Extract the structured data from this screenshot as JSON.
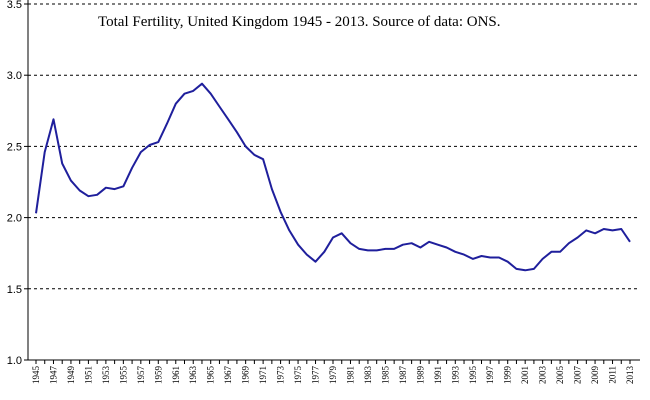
{
  "chart_data": {
    "type": "line",
    "title": "Total Fertility, United Kingdom 1945 - 2013. Source of data: ONS.",
    "xlabel": "",
    "ylabel": "",
    "ylim": [
      1.0,
      3.5
    ],
    "yticks": [
      "1.0",
      "1.5",
      "2.0",
      "2.5",
      "3.0",
      "3.5"
    ],
    "grid": "horizontal dashed",
    "line_color": "#1f1f9c",
    "x_tick_labels": [
      "1945",
      "1947",
      "1949",
      "1951",
      "1953",
      "1955",
      "1957",
      "1959",
      "1961",
      "1963",
      "1965",
      "1967",
      "1969",
      "1971",
      "1973",
      "1975",
      "1977",
      "1979",
      "1981",
      "1983",
      "1985",
      "1987",
      "1989",
      "1991",
      "1993",
      "1995",
      "1997",
      "1999",
      "2001",
      "2003",
      "2005",
      "2007",
      "2009",
      "2011",
      "2013"
    ],
    "series": [
      {
        "x": [
          1945,
          1946,
          1947,
          1948,
          1949,
          1950,
          1951,
          1952,
          1953,
          1954,
          1955,
          1956,
          1957,
          1958,
          1959,
          1960,
          1961,
          1962,
          1963,
          1964,
          1965,
          1966,
          1967,
          1968,
          1969,
          1970,
          1971,
          1972,
          1973,
          1974,
          1975,
          1976,
          1977,
          1978,
          1979,
          1980,
          1981,
          1982,
          1983,
          1984,
          1985,
          1986,
          1987,
          1988,
          1989,
          1990,
          1991,
          1992,
          1993,
          1994,
          1995,
          1996,
          1997,
          1998,
          1999,
          2000,
          2001,
          2002,
          2003,
          2004,
          2005,
          2006,
          2007,
          2008,
          2009,
          2010,
          2011,
          2012,
          2013
        ],
        "values": [
          2.03,
          2.46,
          2.69,
          2.38,
          2.26,
          2.19,
          2.15,
          2.16,
          2.21,
          2.2,
          2.22,
          2.35,
          2.46,
          2.51,
          2.53,
          2.66,
          2.8,
          2.87,
          2.89,
          2.94,
          2.87,
          2.78,
          2.69,
          2.6,
          2.5,
          2.44,
          2.41,
          2.2,
          2.04,
          1.91,
          1.81,
          1.74,
          1.69,
          1.76,
          1.86,
          1.89,
          1.82,
          1.78,
          1.77,
          1.77,
          1.78,
          1.78,
          1.81,
          1.82,
          1.79,
          1.83,
          1.81,
          1.79,
          1.76,
          1.74,
          1.71,
          1.73,
          1.72,
          1.72,
          1.69,
          1.64,
          1.63,
          1.64,
          1.71,
          1.76,
          1.76,
          1.82,
          1.86,
          1.91,
          1.89,
          1.92,
          1.91,
          1.92,
          1.83
        ]
      }
    ]
  }
}
